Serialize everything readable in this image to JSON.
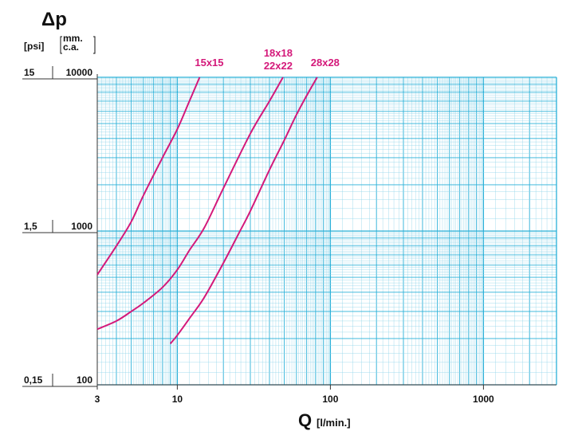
{
  "chart_data": {
    "type": "line",
    "title": "",
    "ylabel_symbol": "Δp",
    "y_unit_psi": "[psi]",
    "y_unit_mm_line1": "mm.",
    "y_unit_mm_line2": "c.a.",
    "xlabel_symbol": "Q",
    "xlabel_unit": "[l/min.]",
    "x_scale": "log",
    "y_scale": "log",
    "xlim": [
      3,
      3000
    ],
    "ylim_mm": [
      100,
      10000
    ],
    "grid": true,
    "x_ticks": [
      {
        "value": 3,
        "label": "3"
      },
      {
        "value": 10,
        "label": "10"
      },
      {
        "value": 100,
        "label": "100"
      },
      {
        "value": 1000,
        "label": "1000"
      }
    ],
    "y_ticks": [
      {
        "value": 10000,
        "psi": "15",
        "mm": "10000"
      },
      {
        "value": 1000,
        "psi": "1,5",
        "mm": "1000"
      },
      {
        "value": 100,
        "psi": "0,15",
        "mm": "100"
      }
    ],
    "series": [
      {
        "name": "15x15",
        "name_line2": "",
        "x": [
          3,
          4,
          5,
          6,
          8,
          10,
          12,
          14
        ],
        "y": [
          520,
          800,
          1150,
          1700,
          3000,
          4600,
          7000,
          10000
        ]
      },
      {
        "name": "18x18",
        "name_line2": "22x22",
        "x": [
          3,
          4,
          5,
          6,
          8,
          10,
          12,
          15,
          20,
          30,
          40,
          49
        ],
        "y": [
          230,
          260,
          300,
          340,
          430,
          560,
          750,
          1050,
          1900,
          4300,
          7000,
          10000
        ]
      },
      {
        "name": "28x28",
        "name_line2": "",
        "x": [
          9,
          10,
          12,
          15,
          20,
          25,
          30,
          40,
          50,
          60,
          70,
          82
        ],
        "y": [
          185,
          210,
          270,
          370,
          620,
          950,
          1350,
          2500,
          3900,
          5700,
          7600,
          10000
        ]
      }
    ]
  },
  "colors": {
    "grid": "#2ab0d8",
    "grid_minor": "#8fd4ea",
    "curve": "#d4197a",
    "text": "#111111"
  }
}
